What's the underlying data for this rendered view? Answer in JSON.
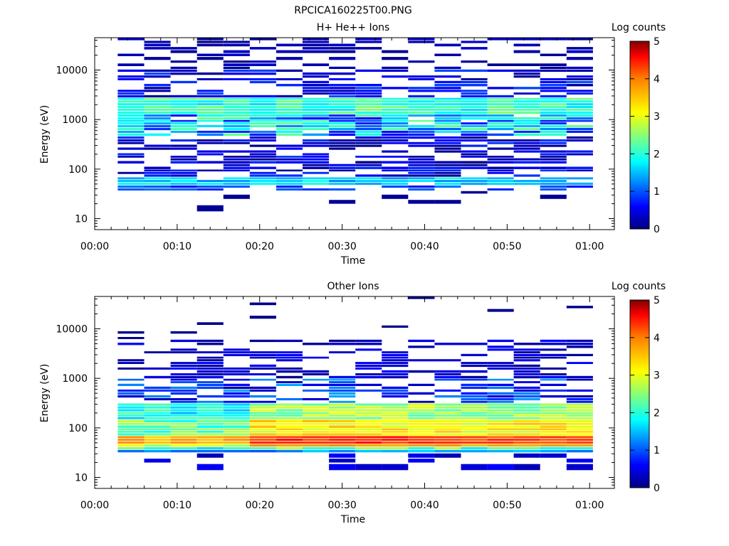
{
  "file_title": "RPCICA160225T00.PNG",
  "colors": {
    "axis": "#000000",
    "colormap_stops": [
      "#00007f",
      "#0000ff",
      "#00ffff",
      "#ffff00",
      "#ff7f00",
      "#ff0000",
      "#7f0000"
    ]
  },
  "chart_data": [
    {
      "type": "heatmap",
      "title": "H+ He++ Ions",
      "xlabel": "Time",
      "ylabel": "Energy (eV)",
      "colorbar_label": "Log counts",
      "colorbar_ticks": [
        "0",
        "1",
        "2",
        "3",
        "4",
        "5"
      ],
      "x_ticks": [
        "00:00",
        "00:10",
        "00:20",
        "00:30",
        "00:40",
        "00:50",
        "01:00"
      ],
      "y_ticks": [
        "10",
        "100",
        "1000",
        "10000"
      ],
      "xlim_minutes": [
        0,
        63
      ],
      "ylim_eV": [
        6,
        45000
      ],
      "y_scale": "log",
      "z_range": [
        0,
        5
      ],
      "time_bin_starts_minutes": [
        2.8,
        6,
        9.2,
        12.4,
        15.6,
        18.8,
        22,
        25.2,
        28.4,
        31.6,
        34.8,
        38,
        41.2,
        44.4,
        47.6,
        50.8,
        54,
        57.2
      ],
      "energy_bins_eV": [
        14,
        20,
        25,
        32,
        37,
        42,
        48,
        55,
        62,
        70,
        80,
        90,
        100,
        115,
        130,
        150,
        170,
        190,
        215,
        245,
        280,
        320,
        360,
        410,
        470,
        540,
        610,
        700,
        800,
        900,
        1000,
        1150,
        1300,
        1500,
        1700,
        1950,
        2200,
        2500,
        2800,
        3200,
        3600,
        4100,
        4700,
        5400,
        6200,
        7000,
        8000,
        9200,
        10500,
        12000,
        14000,
        16000,
        19000,
        22000,
        26000,
        30000,
        35000,
        40000
      ],
      "log_counts_matrix_note": "rows=energy bins low-to-high, cols=time bins"
    },
    {
      "type": "heatmap",
      "title": "Other Ions",
      "xlabel": "Time",
      "ylabel": "Energy (eV)",
      "colorbar_label": "Log counts",
      "colorbar_ticks": [
        "0",
        "1",
        "2",
        "3",
        "4",
        "5"
      ],
      "x_ticks": [
        "00:00",
        "00:10",
        "00:20",
        "00:30",
        "00:40",
        "00:50",
        "01:00"
      ],
      "y_ticks": [
        "10",
        "100",
        "1000",
        "10000"
      ],
      "xlim_minutes": [
        0,
        63
      ],
      "ylim_eV": [
        6,
        45000
      ],
      "y_scale": "log",
      "z_range": [
        0,
        5
      ]
    }
  ]
}
